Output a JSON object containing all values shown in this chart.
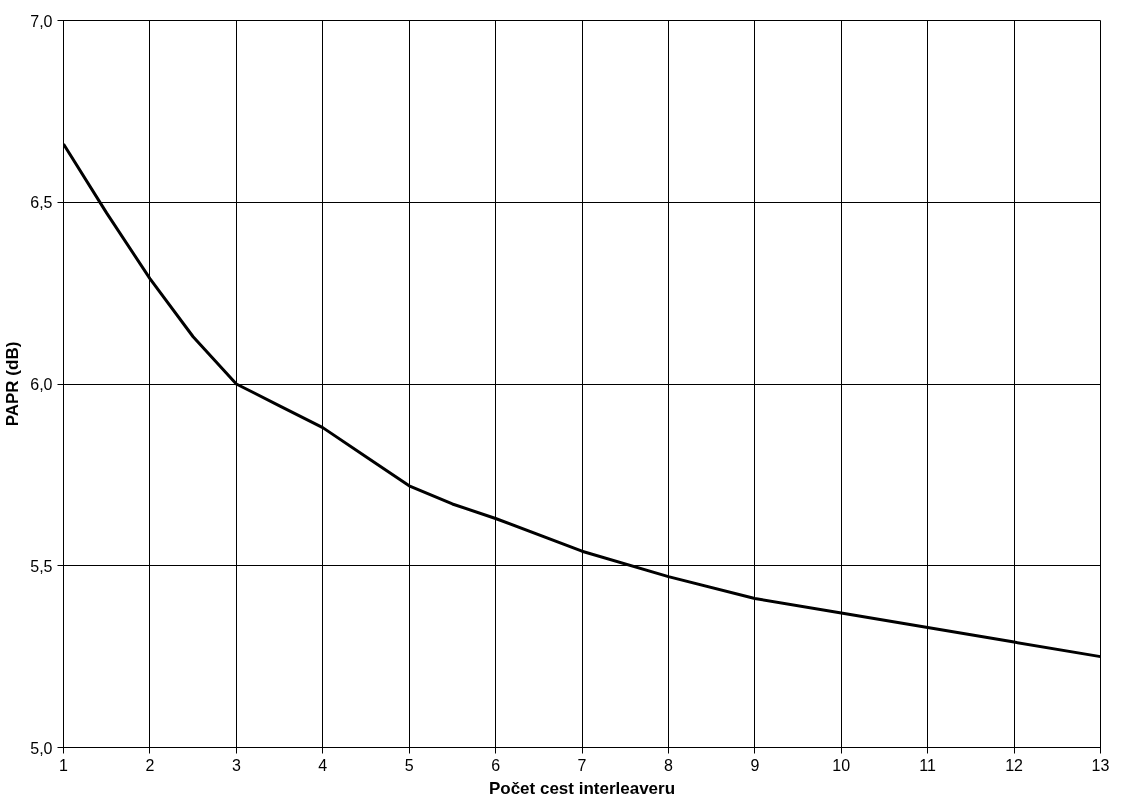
{
  "chart_data": {
    "type": "line",
    "xlabel": "Počet cest interleaveru",
    "ylabel": "PAPR (dB)",
    "x": [
      1,
      1.5,
      2,
      2.5,
      3,
      3.5,
      4,
      4.5,
      5,
      5.5,
      6,
      7,
      8,
      9,
      10,
      11,
      12,
      13
    ],
    "series": [
      {
        "color": "#000000",
        "values": [
          6.66,
          6.47,
          6.29,
          6.13,
          6.0,
          5.94,
          5.88,
          5.8,
          5.72,
          5.67,
          5.63,
          5.54,
          5.47,
          5.41,
          5.37,
          5.33,
          5.29,
          5.25
        ]
      }
    ],
    "xlim": [
      1,
      13
    ],
    "ylim": [
      5.0,
      7.0
    ],
    "xticks": [
      1,
      2,
      3,
      4,
      5,
      6,
      7,
      8,
      9,
      10,
      11,
      12,
      13
    ],
    "yticks": [
      {
        "value": 5.0,
        "label": "5,0"
      },
      {
        "value": 5.5,
        "label": "5,5"
      },
      {
        "value": 6.0,
        "label": "6,0"
      },
      {
        "value": 6.5,
        "label": "6,5"
      },
      {
        "value": 7.0,
        "label": "7,0"
      }
    ],
    "grid": true,
    "marker": "none",
    "line_style": "solid"
  }
}
